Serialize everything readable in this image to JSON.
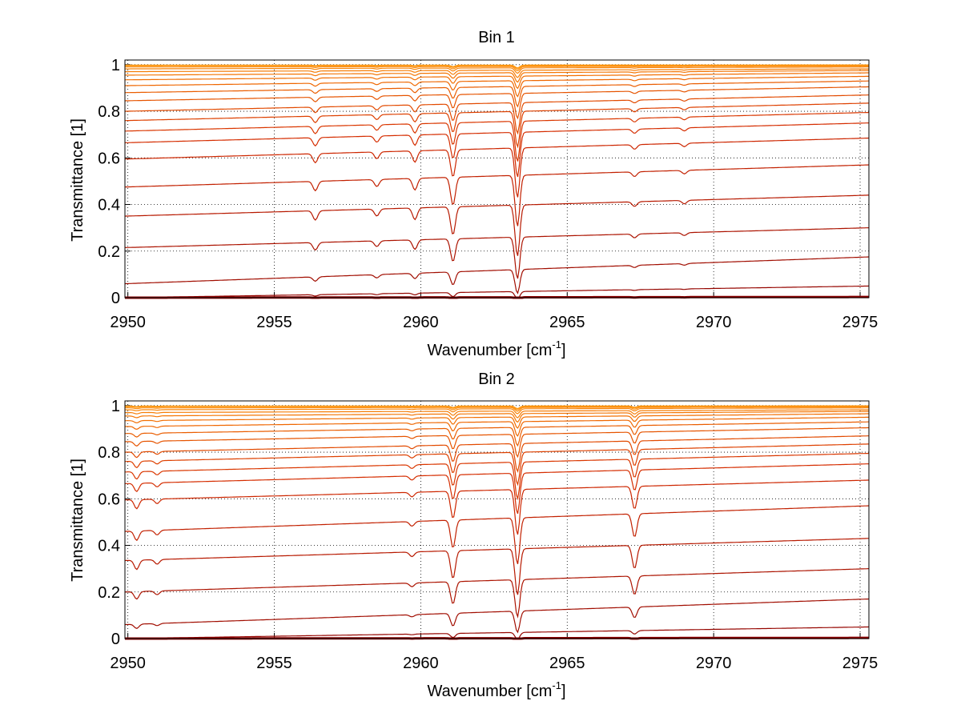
{
  "chart_data": [
    {
      "type": "line",
      "title": "Bin 1",
      "xlabel": "Wavenumber [cm",
      "xlabel_sup": "-1",
      "xlabel_tail": "]",
      "ylabel": "Transmittance [1]",
      "xlim": [
        2949.9,
        2975.3
      ],
      "ylim": [
        0,
        1.02
      ],
      "xticks": [
        2950,
        2955,
        2960,
        2965,
        2970,
        2975
      ],
      "yticks": [
        0,
        0.2,
        0.4,
        0.6,
        0.8,
        1
      ],
      "ytick_labels": [
        "0",
        "0.2",
        "0.4",
        "0.6",
        "0.8",
        "1"
      ],
      "grid": "dotted",
      "color_map": [
        "#8b0000",
        "#d42a00",
        "#f06a00",
        "#ff9a10"
      ],
      "baseline_trends": [
        [
          0.998,
          0.999
        ],
        [
          0.995,
          0.997
        ],
        [
          0.99,
          0.994
        ],
        [
          0.982,
          0.99
        ],
        [
          0.97,
          0.982
        ],
        [
          0.955,
          0.975
        ],
        [
          0.935,
          0.965
        ],
        [
          0.91,
          0.95
        ],
        [
          0.88,
          0.93
        ],
        [
          0.845,
          0.905
        ],
        [
          0.8,
          0.87
        ],
        [
          0.76,
          0.835
        ],
        [
          0.715,
          0.795
        ],
        [
          0.665,
          0.75
        ],
        [
          0.595,
          0.685
        ],
        [
          0.475,
          0.57
        ],
        [
          0.35,
          0.44
        ],
        [
          0.215,
          0.3
        ],
        [
          0.06,
          0.175
        ],
        [
          0.0,
          0.05
        ],
        [
          0.0,
          0.003
        ]
      ],
      "absorption_lines": [
        {
          "x": 2956.4,
          "depth": 0.04
        },
        {
          "x": 2958.5,
          "depth": 0.03
        },
        {
          "x": 2959.8,
          "depth": 0.05
        },
        {
          "x": 2961.1,
          "depth": 0.12
        },
        {
          "x": 2963.3,
          "depth": 0.22
        },
        {
          "x": 2967.3,
          "depth": 0.02
        },
        {
          "x": 2969.0,
          "depth": 0.015
        }
      ]
    },
    {
      "type": "line",
      "title": "Bin 2",
      "xlabel": "Wavenumber [cm",
      "xlabel_sup": "-1",
      "xlabel_tail": "]",
      "ylabel": "Transmittance [1]",
      "xlim": [
        2949.9,
        2975.3
      ],
      "ylim": [
        0,
        1.02
      ],
      "xticks": [
        2950,
        2955,
        2960,
        2965,
        2970,
        2975
      ],
      "yticks": [
        0,
        0.2,
        0.4,
        0.6,
        0.8,
        1
      ],
      "ytick_labels": [
        "0",
        "0.2",
        "0.4",
        "0.6",
        "0.8",
        "1"
      ],
      "grid": "dotted",
      "color_map": [
        "#8b0000",
        "#d42a00",
        "#f06a00",
        "#ff9a10"
      ],
      "baseline_trends": [
        [
          0.998,
          0.999
        ],
        [
          0.995,
          0.997
        ],
        [
          0.99,
          0.994
        ],
        [
          0.982,
          0.99
        ],
        [
          0.97,
          0.982
        ],
        [
          0.955,
          0.975
        ],
        [
          0.935,
          0.965
        ],
        [
          0.91,
          0.95
        ],
        [
          0.88,
          0.93
        ],
        [
          0.845,
          0.905
        ],
        [
          0.8,
          0.87
        ],
        [
          0.76,
          0.835
        ],
        [
          0.715,
          0.795
        ],
        [
          0.665,
          0.75
        ],
        [
          0.595,
          0.68
        ],
        [
          0.46,
          0.57
        ],
        [
          0.335,
          0.43
        ],
        [
          0.2,
          0.3
        ],
        [
          0.06,
          0.17
        ],
        [
          0.0,
          0.05
        ],
        [
          0.0,
          0.003
        ]
      ],
      "absorption_lines": [
        {
          "x": 2950.3,
          "depth": 0.04
        },
        {
          "x": 2951.0,
          "depth": 0.02
        },
        {
          "x": 2959.7,
          "depth": 0.02
        },
        {
          "x": 2961.1,
          "depth": 0.12
        },
        {
          "x": 2963.3,
          "depth": 0.2
        },
        {
          "x": 2967.3,
          "depth": 0.1
        }
      ]
    }
  ]
}
